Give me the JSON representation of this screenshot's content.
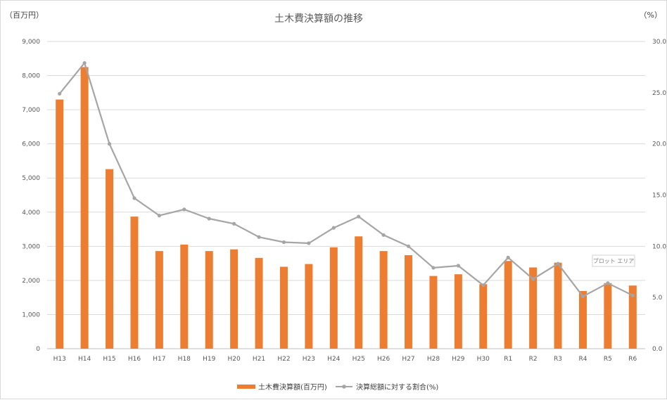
{
  "chart_data": {
    "type": "bar+line",
    "title": "土木費決算額の推移",
    "y_left_unit": "（百万円）",
    "y_right_unit": "（%）",
    "categories": [
      "H13",
      "H14",
      "H15",
      "H16",
      "H17",
      "H18",
      "H19",
      "H20",
      "H21",
      "H22",
      "H23",
      "H24",
      "H25",
      "H26",
      "H27",
      "H28",
      "H29",
      "H30",
      "R1",
      "R2",
      "R3",
      "R4",
      "R5",
      "R6"
    ],
    "series": [
      {
        "name": "土木費決算額(百万円)",
        "type": "bar",
        "axis": "left",
        "color": "#ED7D31",
        "values": [
          7300,
          8250,
          5260,
          3870,
          2860,
          3050,
          2860,
          2910,
          2660,
          2400,
          2480,
          2970,
          3290,
          2860,
          2740,
          2130,
          2180,
          1890,
          2570,
          2380,
          2520,
          1690,
          1920,
          1850
        ]
      },
      {
        "name": "決算総額に対する割合(%)",
        "type": "line",
        "axis": "right",
        "color": "#A5A5A5",
        "values": [
          24.9,
          27.9,
          20.0,
          14.7,
          13.0,
          13.6,
          12.7,
          12.2,
          10.9,
          10.4,
          10.3,
          11.8,
          12.9,
          11.1,
          10.0,
          7.9,
          8.1,
          6.2,
          8.9,
          6.8,
          8.3,
          5.1,
          6.4,
          5.2
        ]
      }
    ],
    "y_left": {
      "min": 0,
      "max": 9000,
      "step": 1000,
      "tick_labels": [
        "0",
        "1,000",
        "2,000",
        "3,000",
        "4,000",
        "5,000",
        "6,000",
        "7,000",
        "8,000",
        "9,000"
      ]
    },
    "y_right": {
      "min": 0,
      "max": 30,
      "step": 5,
      "tick_labels": [
        "0.0",
        "5.0",
        "10.0",
        "15.0",
        "20.0",
        "25.0",
        "30.0"
      ]
    },
    "grid": true,
    "legend_position": "bottom",
    "tooltip": "プロット エリア"
  }
}
